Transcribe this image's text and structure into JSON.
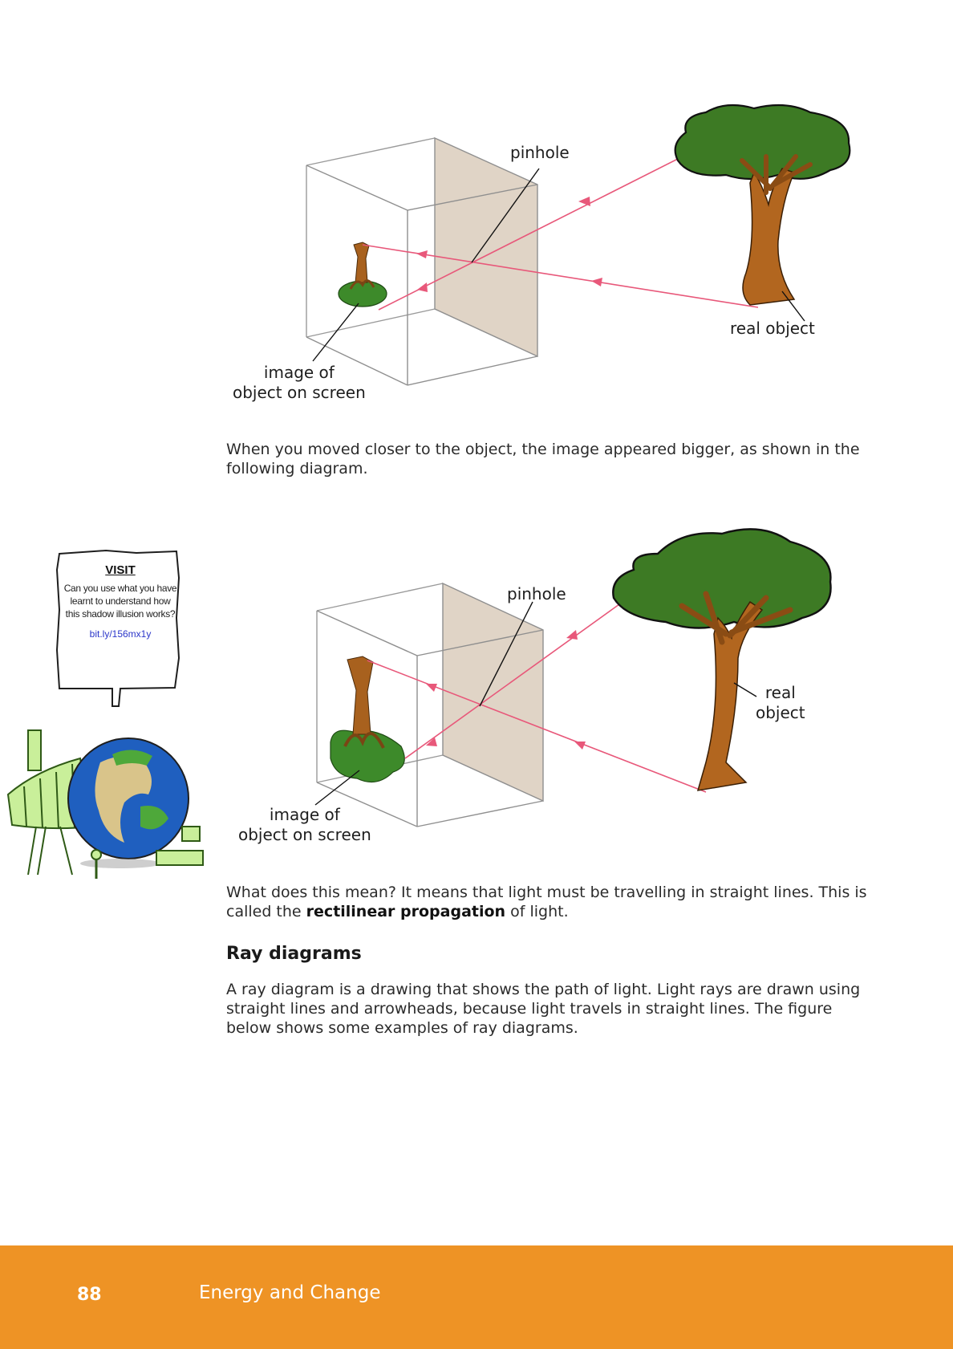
{
  "diagram1": {
    "pinhole_label": "pinhole",
    "real_object_label": "real object",
    "image_label_line1": "image of",
    "image_label_line2": "object on screen"
  },
  "paragraph1": "When you moved closer to the object, the image appeared bigger, as shown in the following diagram.",
  "visit": {
    "title": "VISIT",
    "body": "Can you use what you have learnt to understand how this shadow illusion works?",
    "link": "bit.ly/156mx1y"
  },
  "diagram2": {
    "pinhole_label": "pinhole",
    "real_object_line1": "real",
    "real_object_line2": "object",
    "image_label_line1": "image of",
    "image_label_line2": "object on screen"
  },
  "paragraph2": {
    "before": "What does this mean? It means that light must be travelling in straight lines. This is called the ",
    "bold": "rectilinear propagation",
    "after": " of light."
  },
  "section_heading": "Ray diagrams",
  "paragraph3": "A ray diagram is a drawing that shows the path of light. Light rays are drawn using straight lines and arrowheads, because light travels in straight lines. The figure below shows some examples of ray diagrams.",
  "footer": {
    "page_number": "88",
    "book_title": "Energy and Change"
  },
  "colors": {
    "ray": "#e8587a",
    "footer": "#ee9325",
    "link": "#2a35c9"
  }
}
